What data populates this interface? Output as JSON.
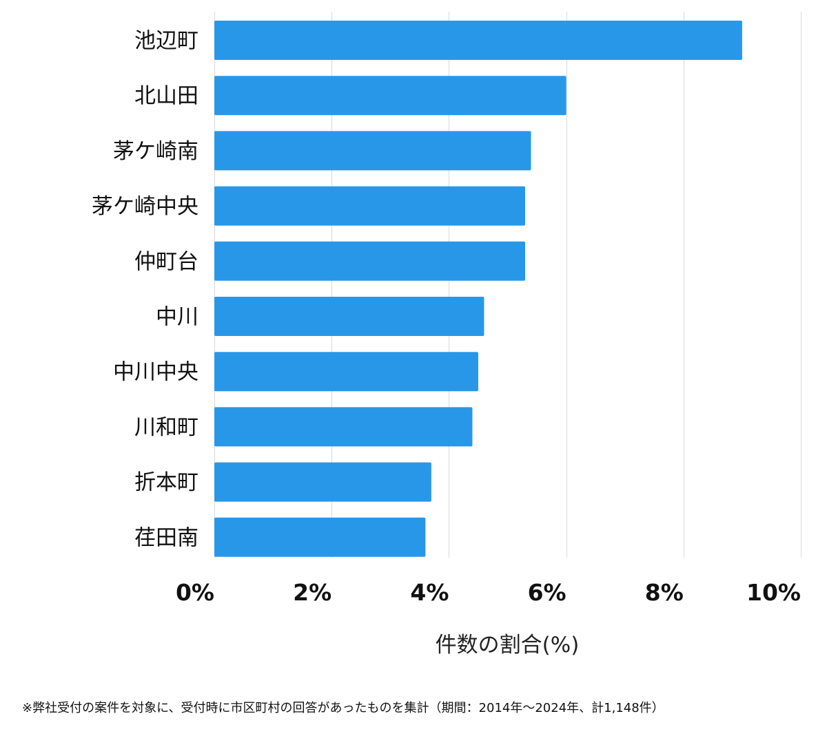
{
  "chart_data": {
    "type": "bar",
    "orientation": "horizontal",
    "categories": [
      "池辺町",
      "北山田",
      "茅ケ崎南",
      "茅ケ崎中央",
      "仲町台",
      "中川",
      "中川中央",
      "川和町",
      "折本町",
      "荏田南"
    ],
    "values": [
      9.0,
      6.0,
      5.4,
      5.3,
      5.3,
      4.6,
      4.5,
      4.4,
      3.7,
      3.6
    ],
    "xlim": [
      0,
      10
    ],
    "xticks": [
      0,
      2,
      4,
      6,
      8,
      10
    ],
    "tick_labels": [
      "0%",
      "2%",
      "4%",
      "6%",
      "8%",
      "10%"
    ],
    "xlabel": "件数の割合(%)",
    "grid": true,
    "bar_color": "#2897e8",
    "footnote": "※弊社受付の案件を対象に、受付時に市区町村の回答があったものを集計（期間：2014年～2024年、計1,148件）"
  }
}
